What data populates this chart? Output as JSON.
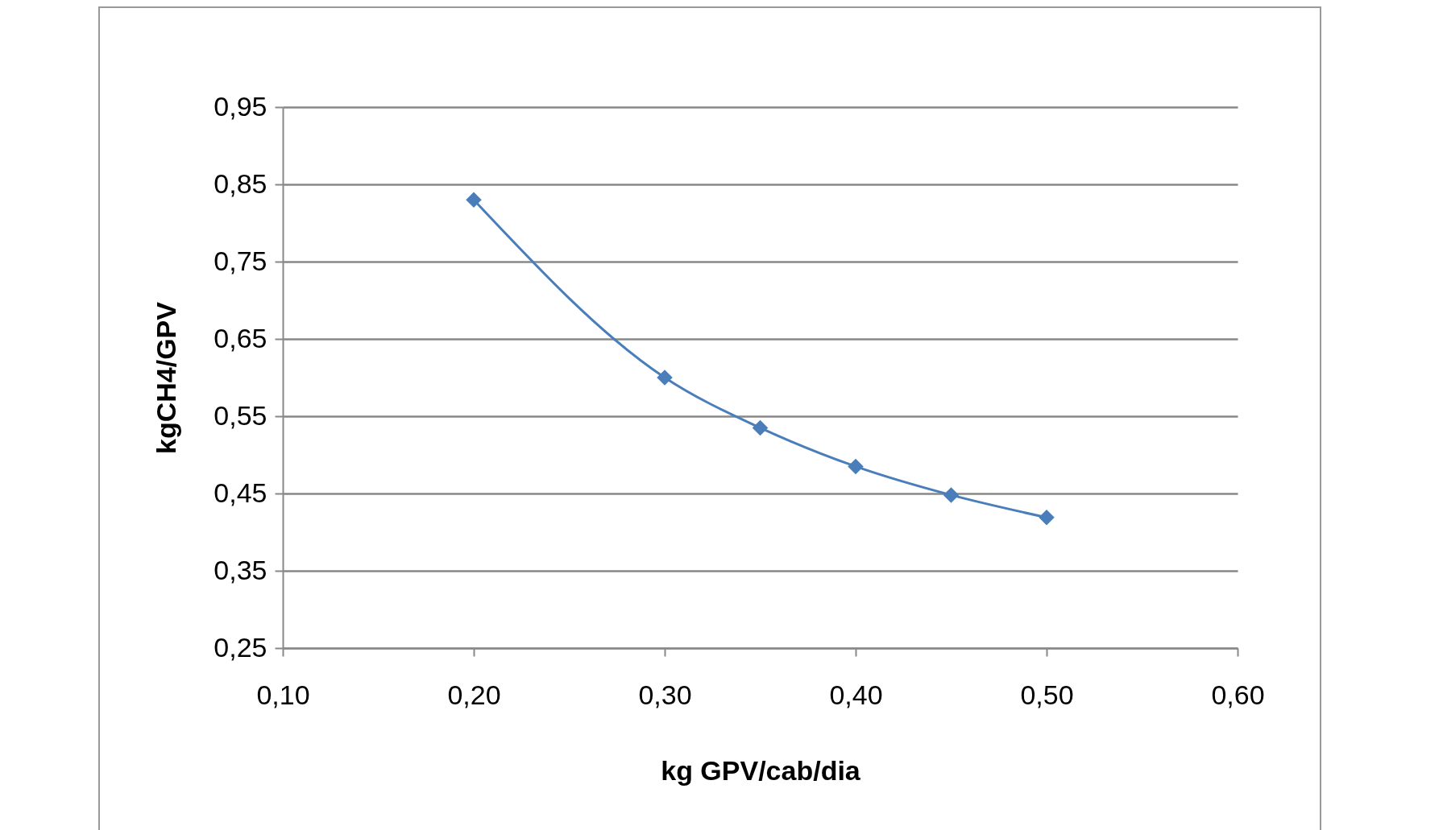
{
  "chart_data": {
    "type": "line",
    "xlabel": "kg GPV/cab/dia",
    "ylabel": "kgCH4/GPV",
    "x": [
      0.2,
      0.3,
      0.35,
      0.4,
      0.45,
      0.5
    ],
    "series": [
      {
        "color": "#4a7ebb",
        "values": [
          0.83,
          0.6,
          0.535,
          0.485,
          0.448,
          0.419
        ]
      }
    ],
    "xlim": [
      0.1,
      0.6
    ],
    "ylim": [
      0.25,
      0.95
    ],
    "xticks": [
      {
        "value": 0.1,
        "label": "0,10"
      },
      {
        "value": 0.2,
        "label": "0,20"
      },
      {
        "value": 0.3,
        "label": "0,30"
      },
      {
        "value": 0.4,
        "label": "0,40"
      },
      {
        "value": 0.5,
        "label": "0,50"
      },
      {
        "value": 0.6,
        "label": "0,60"
      }
    ],
    "yticks": [
      {
        "value": 0.25,
        "label": "0,25"
      },
      {
        "value": 0.35,
        "label": "0,35"
      },
      {
        "value": 0.45,
        "label": "0,45"
      },
      {
        "value": 0.55,
        "label": "0,55"
      },
      {
        "value": 0.65,
        "label": "0,65"
      },
      {
        "value": 0.75,
        "label": "0,75"
      },
      {
        "value": 0.85,
        "label": "0,85"
      },
      {
        "value": 0.95,
        "label": "0,95"
      }
    ],
    "grid": "y",
    "marker": "diamond",
    "line_style": "solid"
  }
}
